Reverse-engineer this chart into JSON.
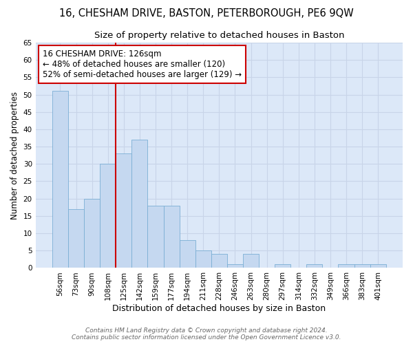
{
  "title": "16, CHESHAM DRIVE, BASTON, PETERBOROUGH, PE6 9QW",
  "subtitle": "Size of property relative to detached houses in Baston",
  "xlabel": "Distribution of detached houses by size in Baston",
  "ylabel": "Number of detached properties",
  "categories": [
    "56sqm",
    "73sqm",
    "90sqm",
    "108sqm",
    "125sqm",
    "142sqm",
    "159sqm",
    "177sqm",
    "194sqm",
    "211sqm",
    "228sqm",
    "246sqm",
    "263sqm",
    "280sqm",
    "297sqm",
    "314sqm",
    "332sqm",
    "349sqm",
    "366sqm",
    "383sqm",
    "401sqm"
  ],
  "values": [
    51,
    17,
    20,
    30,
    33,
    37,
    18,
    18,
    8,
    5,
    4,
    1,
    4,
    0,
    1,
    0,
    1,
    0,
    1,
    1,
    1
  ],
  "bar_color": "#c5d8f0",
  "bar_edge_color": "#7aaed4",
  "vline_x_index": 4,
  "vline_color": "#cc0000",
  "annotation_line1": "16 CHESHAM DRIVE: 126sqm",
  "annotation_line2": "← 48% of detached houses are smaller (120)",
  "annotation_line3": "52% of semi-detached houses are larger (129) →",
  "annotation_box_color": "#ffffff",
  "annotation_box_edge": "#cc0000",
  "ylim": [
    0,
    65
  ],
  "yticks": [
    0,
    5,
    10,
    15,
    20,
    25,
    30,
    35,
    40,
    45,
    50,
    55,
    60,
    65
  ],
  "grid_color": "#c8d4e8",
  "background_color": "#dce8f8",
  "footer_text": "Contains HM Land Registry data © Crown copyright and database right 2024.\nContains public sector information licensed under the Open Government Licence v3.0.",
  "title_fontsize": 10.5,
  "subtitle_fontsize": 9.5,
  "xlabel_fontsize": 9,
  "ylabel_fontsize": 8.5,
  "tick_fontsize": 7.5,
  "annotation_fontsize": 8.5,
  "footer_fontsize": 6.5
}
